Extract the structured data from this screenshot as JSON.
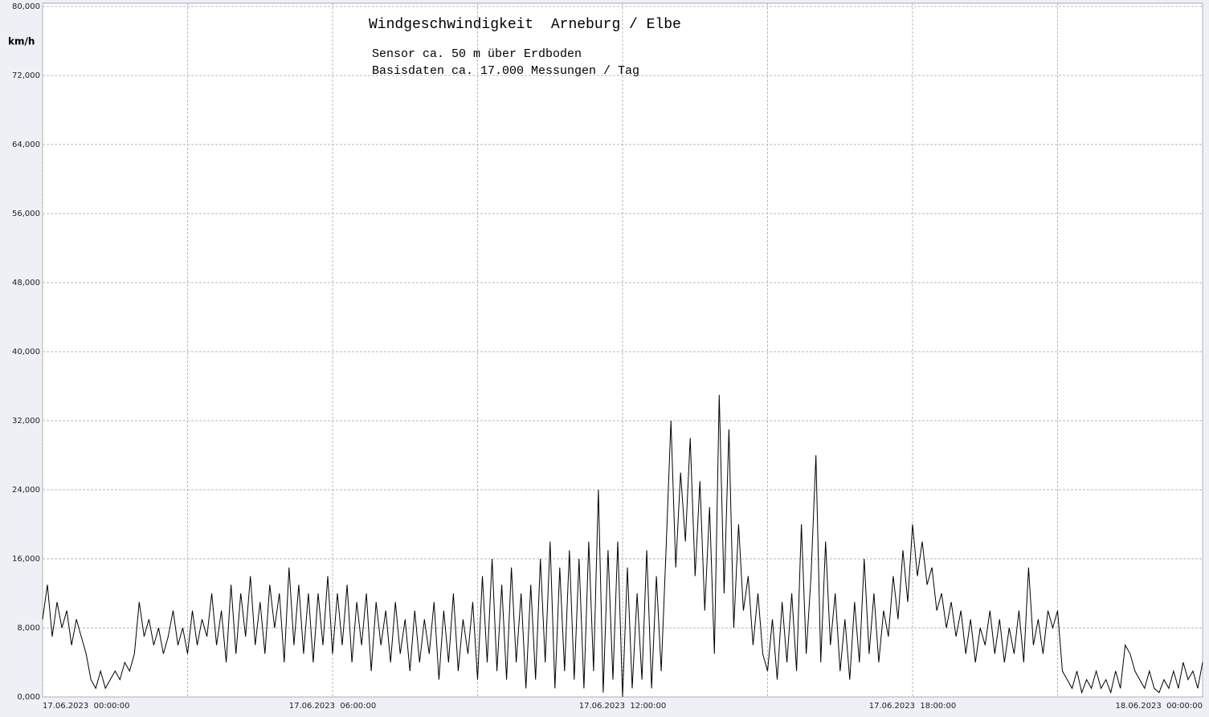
{
  "chart_data": {
    "type": "line",
    "title": "Windgeschwindigkeit  Arneburg / Elbe",
    "subtitle": "Sensor ca. 50 m über Erdboden",
    "annotation": "Basisdaten ca. 17.000 Messungen / Tag",
    "y_label": "km/h",
    "color": "#000000",
    "grid": true,
    "xlim": [
      0,
      24
    ],
    "xticks": [
      {
        "value": 0,
        "label": "17.06.2023  00:00:00"
      },
      {
        "value": 3,
        "label": null
      },
      {
        "value": 6,
        "label": "17.06.2023  06:00:00"
      },
      {
        "value": 9,
        "label": null
      },
      {
        "value": 12,
        "label": "17.06.2023  12:00:00"
      },
      {
        "value": 15,
        "label": null
      },
      {
        "value": 18,
        "label": "17.06.2023  18:00:00"
      },
      {
        "value": 21,
        "label": null
      },
      {
        "value": 24,
        "label": "18.06.2023  00:00:00"
      }
    ],
    "ylim": [
      0,
      80
    ],
    "yticks": [
      {
        "value": 0,
        "label": "0,000"
      },
      {
        "value": 8,
        "label": "8,000"
      },
      {
        "value": 16,
        "label": "16,000"
      },
      {
        "value": 24,
        "label": "24,000"
      },
      {
        "value": 32,
        "label": "32,000"
      },
      {
        "value": 40,
        "label": "40,000"
      },
      {
        "value": 48,
        "label": "48,000"
      },
      {
        "value": 56,
        "label": "56,000"
      },
      {
        "value": 64,
        "label": "64,000"
      },
      {
        "value": 72,
        "label": "72,000"
      },
      {
        "value": 80,
        "label": "80,000"
      }
    ],
    "x": [
      0,
      0.1,
      0.2,
      0.3,
      0.4,
      0.5,
      0.6,
      0.7,
      0.8,
      0.9,
      1,
      1.1,
      1.2,
      1.3,
      1.4,
      1.5,
      1.6,
      1.7,
      1.8,
      1.9,
      2,
      2.1,
      2.2,
      2.3,
      2.4,
      2.5,
      2.6,
      2.7,
      2.8,
      2.9,
      3,
      3.1,
      3.2,
      3.3,
      3.4,
      3.5,
      3.6,
      3.7,
      3.8,
      3.9,
      4,
      4.1,
      4.2,
      4.3,
      4.4,
      4.5,
      4.6,
      4.7,
      4.8,
      4.9,
      5,
      5.1,
      5.2,
      5.3,
      5.4,
      5.5,
      5.6,
      5.7,
      5.8,
      5.9,
      6,
      6.1,
      6.2,
      6.3,
      6.4,
      6.5,
      6.6,
      6.7,
      6.8,
      6.9,
      7,
      7.1,
      7.2,
      7.3,
      7.4,
      7.5,
      7.6,
      7.7,
      7.8,
      7.9,
      8,
      8.1,
      8.2,
      8.3,
      8.4,
      8.5,
      8.6,
      8.7,
      8.8,
      8.9,
      9,
      9.1,
      9.2,
      9.3,
      9.4,
      9.5,
      9.6,
      9.7,
      9.8,
      9.9,
      10,
      10.1,
      10.2,
      10.3,
      10.4,
      10.5,
      10.6,
      10.7,
      10.8,
      10.9,
      11,
      11.1,
      11.2,
      11.3,
      11.4,
      11.5,
      11.6,
      11.7,
      11.8,
      11.9,
      12,
      12.1,
      12.2,
      12.3,
      12.4,
      12.5,
      12.6,
      12.7,
      12.8,
      12.9,
      13,
      13.1,
      13.2,
      13.3,
      13.4,
      13.5,
      13.6,
      13.7,
      13.8,
      13.9,
      14,
      14.1,
      14.2,
      14.3,
      14.4,
      14.5,
      14.6,
      14.7,
      14.8,
      14.9,
      15,
      15.1,
      15.2,
      15.3,
      15.4,
      15.5,
      15.6,
      15.7,
      15.8,
      15.9,
      16,
      16.1,
      16.2,
      16.3,
      16.4,
      16.5,
      16.6,
      16.7,
      16.8,
      16.9,
      17,
      17.1,
      17.2,
      17.3,
      17.4,
      17.5,
      17.6,
      17.7,
      17.8,
      17.9,
      18,
      18.1,
      18.2,
      18.3,
      18.4,
      18.5,
      18.6,
      18.7,
      18.8,
      18.9,
      19,
      19.1,
      19.2,
      19.3,
      19.4,
      19.5,
      19.6,
      19.7,
      19.8,
      19.9,
      20,
      20.1,
      20.2,
      20.3,
      20.4,
      20.5,
      20.6,
      20.7,
      20.8,
      20.9,
      21,
      21.1,
      21.2,
      21.3,
      21.4,
      21.5,
      21.6,
      21.7,
      21.8,
      21.9,
      22,
      22.1,
      22.2,
      22.3,
      22.4,
      22.5,
      22.6,
      22.7,
      22.8,
      22.9,
      23,
      23.1,
      23.2,
      23.3,
      23.4,
      23.5,
      23.6,
      23.7,
      23.8,
      23.9,
      24
    ],
    "values": [
      9,
      13,
      7,
      11,
      8,
      10,
      6,
      9,
      7,
      5,
      2,
      1,
      3,
      1,
      2,
      3,
      2,
      4,
      3,
      5,
      11,
      7,
      9,
      6,
      8,
      5,
      7,
      10,
      6,
      8,
      5,
      10,
      6,
      9,
      7,
      12,
      6,
      10,
      4,
      13,
      5,
      12,
      7,
      14,
      6,
      11,
      5,
      13,
      8,
      12,
      4,
      15,
      6,
      13,
      5,
      12,
      4,
      12,
      6,
      14,
      5,
      12,
      6,
      13,
      4,
      11,
      6,
      12,
      3,
      11,
      6,
      10,
      4,
      11,
      5,
      9,
      3,
      10,
      4,
      9,
      5,
      11,
      2,
      10,
      4,
      12,
      3,
      9,
      5,
      11,
      2,
      14,
      4,
      16,
      3,
      13,
      2,
      15,
      4,
      12,
      1,
      13,
      2,
      16,
      4,
      18,
      1,
      15,
      3,
      17,
      2,
      16,
      1,
      18,
      3,
      24,
      0.5,
      17,
      2,
      18,
      0,
      15,
      1,
      12,
      2,
      17,
      1,
      14,
      3,
      17,
      32,
      15,
      26,
      18,
      30,
      14,
      25,
      10,
      22,
      5,
      35,
      12,
      31,
      8,
      20,
      10,
      14,
      6,
      12,
      5,
      3,
      9,
      2,
      11,
      4,
      12,
      3,
      20,
      5,
      14,
      28,
      4,
      18,
      6,
      12,
      3,
      9,
      2,
      11,
      4,
      16,
      5,
      12,
      4,
      10,
      7,
      14,
      9,
      17,
      11,
      20,
      14,
      18,
      13,
      15,
      10,
      12,
      8,
      11,
      7,
      10,
      5,
      9,
      4,
      8,
      6,
      10,
      5,
      9,
      4,
      8,
      5,
      10,
      4,
      15,
      6,
      9,
      5,
      10,
      8,
      10,
      3,
      2,
      1,
      3,
      0.5,
      2,
      1,
      3,
      1,
      2,
      0.5,
      3,
      1,
      6,
      5,
      3,
      2,
      1,
      3,
      1,
      0.5,
      2,
      1,
      3,
      1,
      4,
      2,
      3,
      1,
      4
    ]
  }
}
